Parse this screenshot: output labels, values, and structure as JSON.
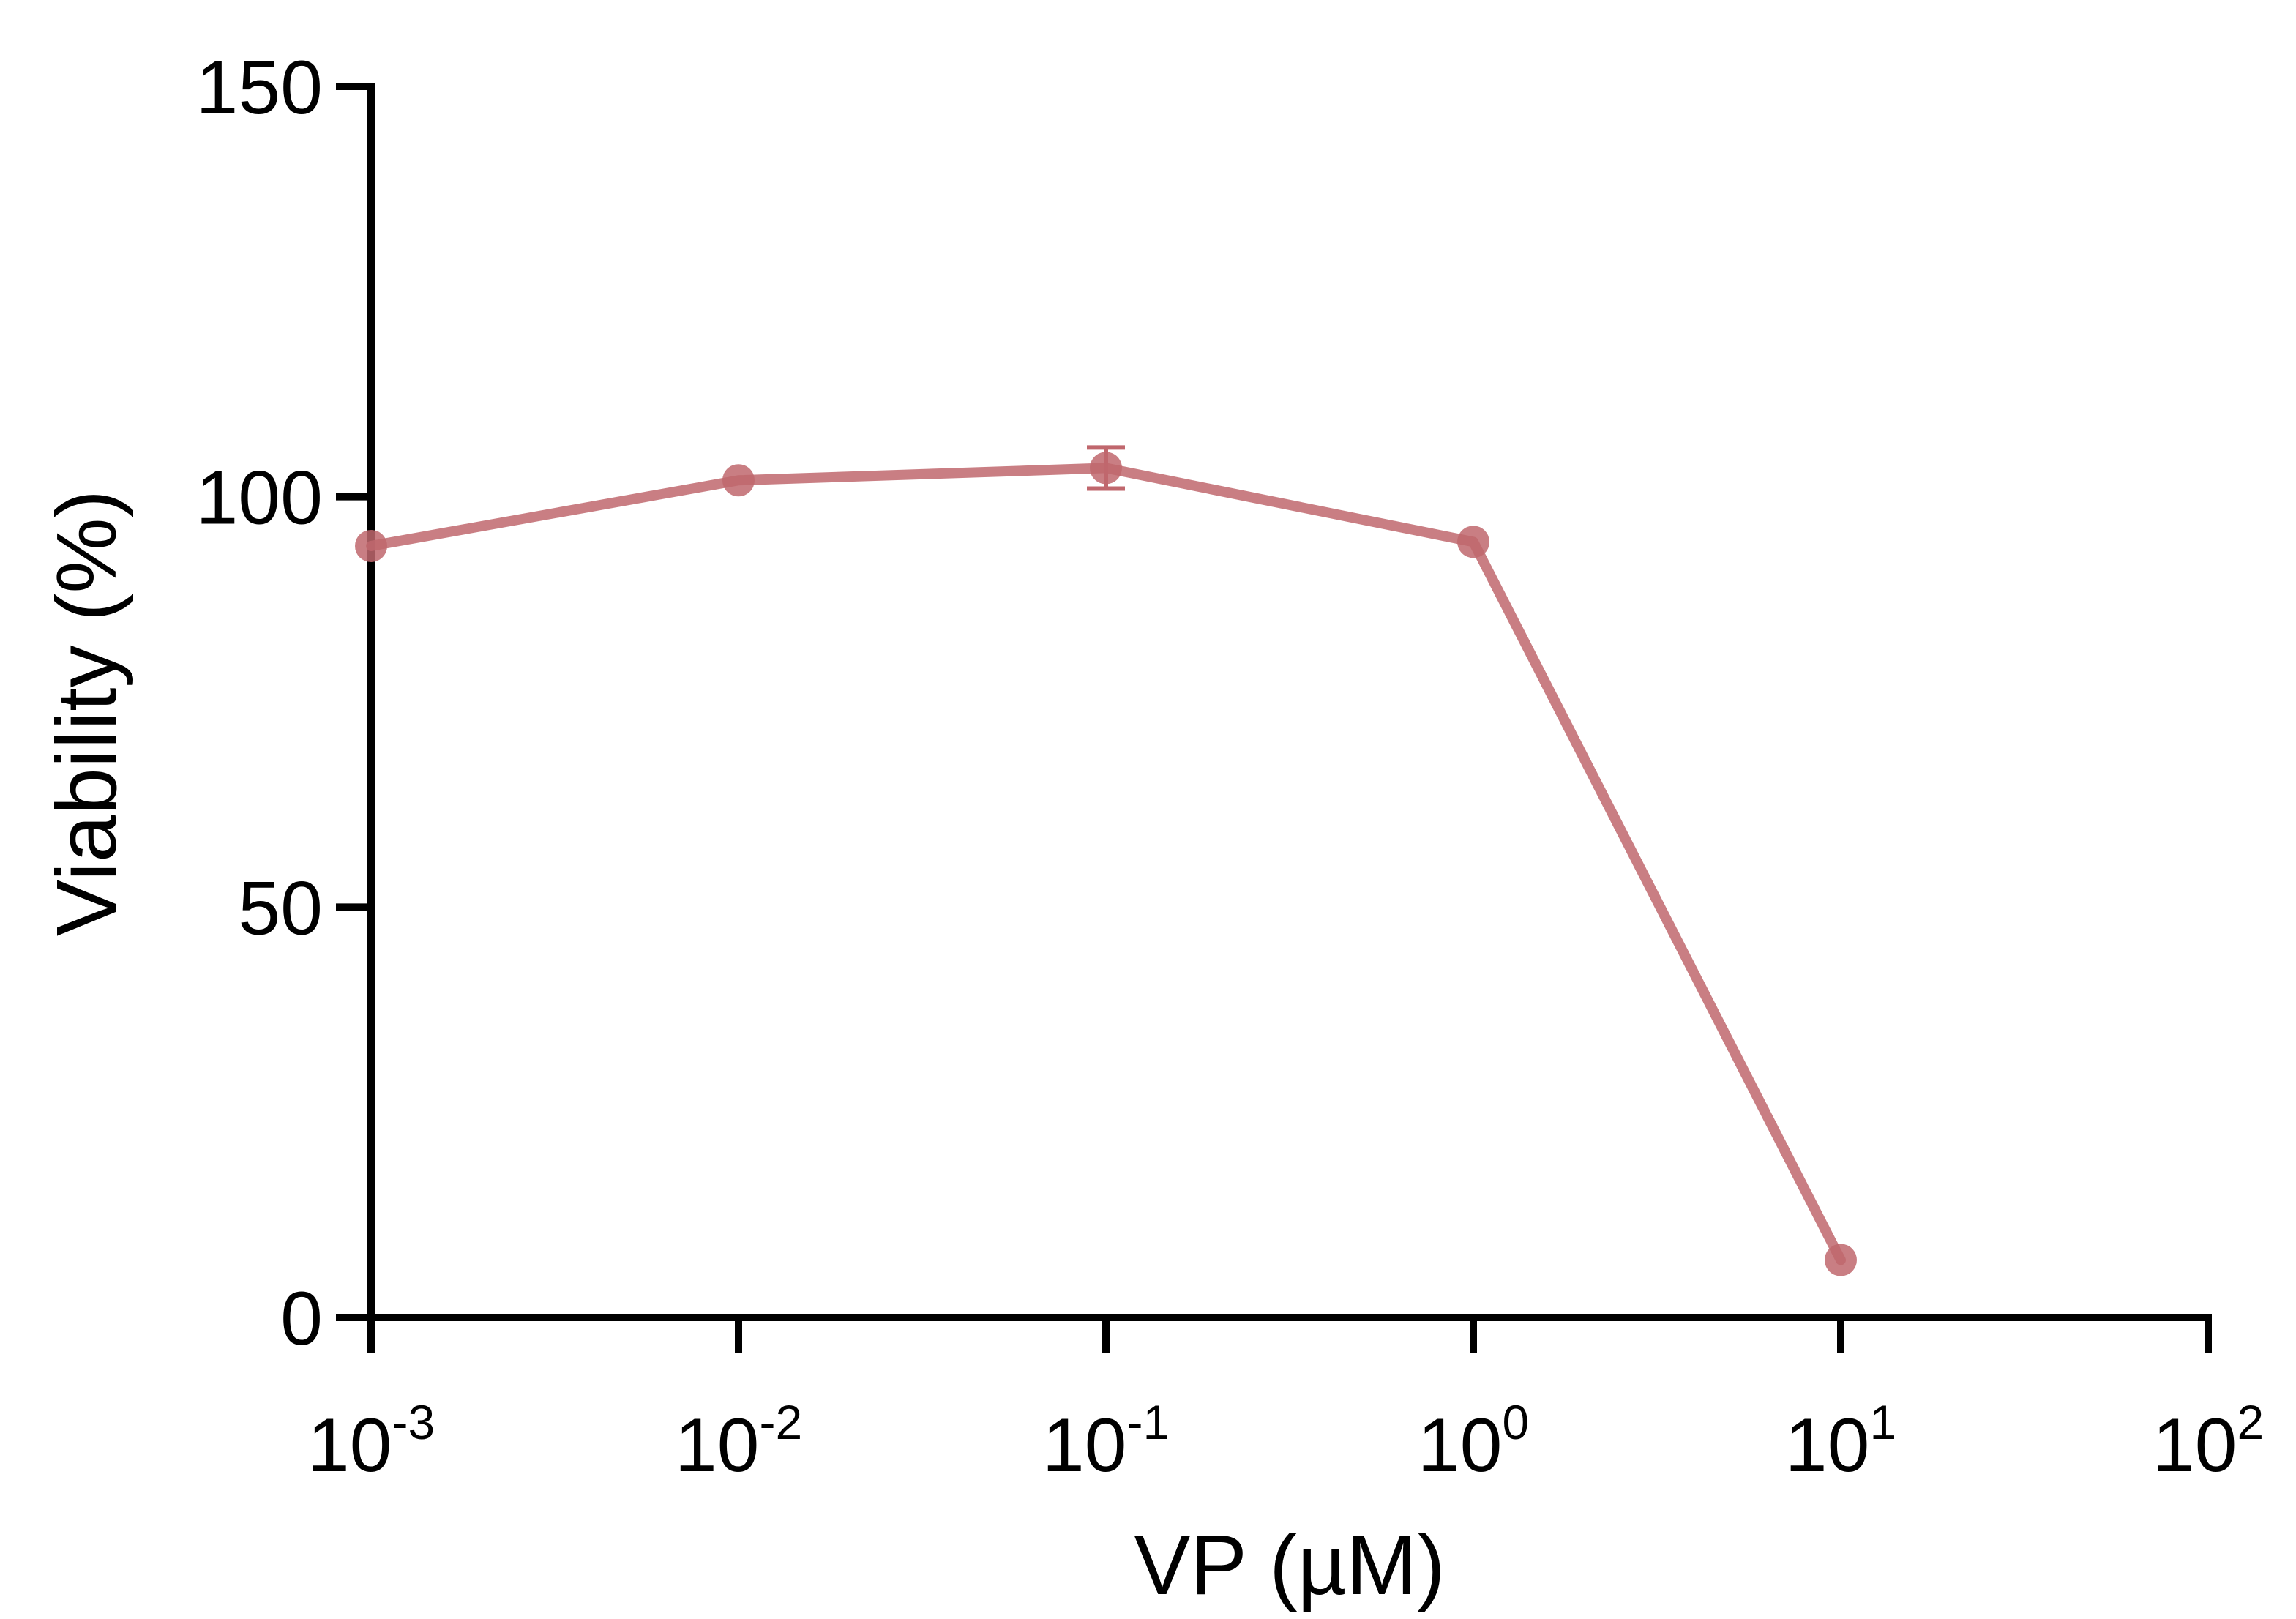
{
  "chart_data": {
    "type": "line",
    "xscale": "log",
    "xlim": [
      0.001,
      100
    ],
    "ylim": [
      0,
      150
    ],
    "xlabel": "VP (µM)",
    "ylabel": "Viability (%)",
    "x_ticks": [
      {
        "base": "10",
        "exp": "-3",
        "value": 0.001
      },
      {
        "base": "10",
        "exp": "-2",
        "value": 0.01
      },
      {
        "base": "10",
        "exp": "-1",
        "value": 0.1
      },
      {
        "base": "10",
        "exp": "0",
        "value": 1
      },
      {
        "base": "10",
        "exp": "1",
        "value": 10
      },
      {
        "base": "10",
        "exp": "2",
        "value": 100
      }
    ],
    "y_ticks": [
      0,
      50,
      100,
      150
    ],
    "grid": false,
    "series": [
      {
        "color": "#c0676d",
        "points": [
          {
            "x": 0.001,
            "y": 94,
            "err": 0
          },
          {
            "x": 0.01,
            "y": 102,
            "err": 0
          },
          {
            "x": 0.1,
            "y": 103.5,
            "err": 2.5
          },
          {
            "x": 1,
            "y": 94.5,
            "err": 0
          },
          {
            "x": 10,
            "y": 7,
            "err": 0
          }
        ]
      }
    ]
  }
}
